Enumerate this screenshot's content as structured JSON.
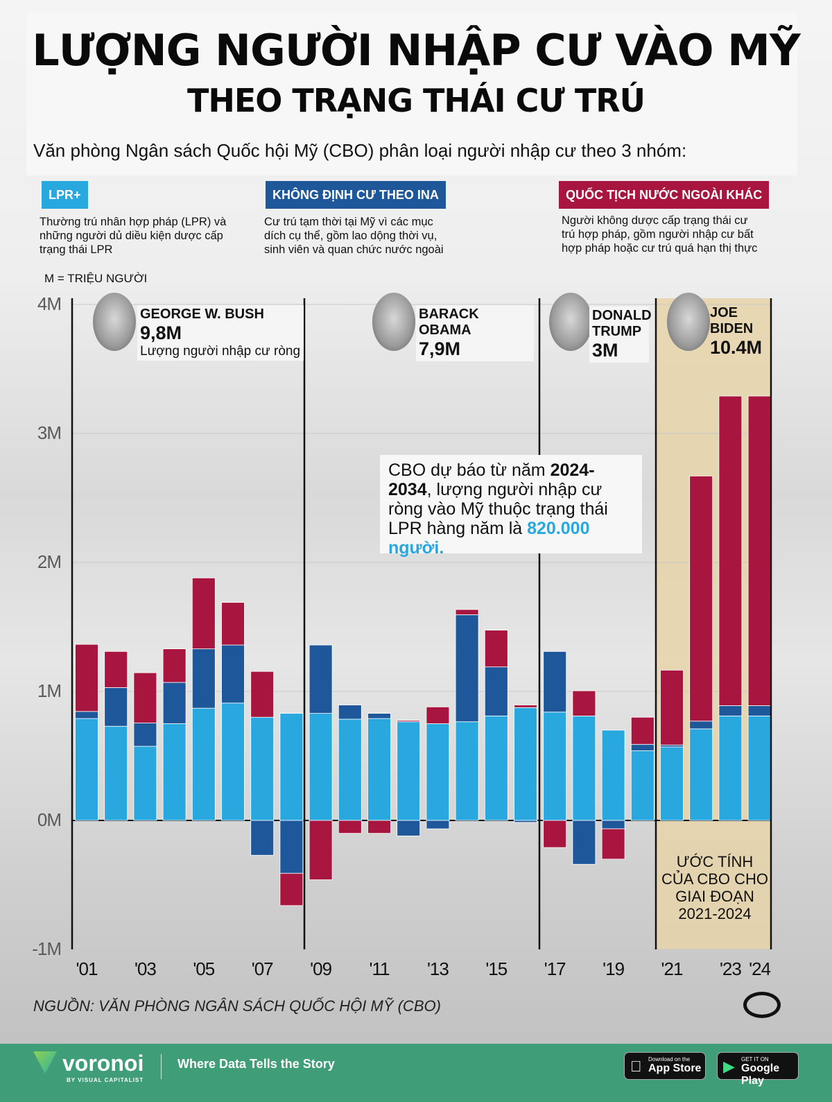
{
  "header": {
    "title": "LƯỢNG NGƯỜI NHẬP CƯ VÀO MỸ",
    "subtitle": "THEO TRẠNG THÁI CƯ TRÚ",
    "intro": "Văn phòng Ngân sách Quốc hội Mỹ (CBO) phân loại người nhập cư theo 3 nhóm:"
  },
  "legend": [
    {
      "label": "LPR+",
      "color": "#29a8e0",
      "desc": "Thường trú nhân hợp pháp (LPR) và những người dủ diều kiện dược cấp trạng thái LPR"
    },
    {
      "label": "KHÔNG ĐỊNH CƯ THEO INA",
      "color": "#1f579b",
      "desc": "Cư trú tạm thời tại Mỹ vì các mục dích cụ thể, gồm lao dộng thời vụ, sinh viên và quan chức nước ngoài"
    },
    {
      "label": "QUỐC TỊCH NƯỚC NGOÀI KHÁC",
      "color": "#a8153e",
      "desc": "Người không dược cấp trạng thái cư trú hợp pháp, gồm người nhập cư bất hợp pháp hoặc cư trú quá hạn thị thực"
    }
  ],
  "unit_note": "M = TRIỆU NGƯỜI",
  "presidents": [
    {
      "name": "GEORGE W. BUSH",
      "value": "9,8M",
      "note": "Lượng người nhập cư ròng"
    },
    {
      "name": "BARACK OBAMA",
      "value": "7,9M"
    },
    {
      "name": "DONALD TRUMP",
      "value": "3M"
    },
    {
      "name": "JOE BIDEN",
      "value": "10.4M"
    }
  ],
  "callout": {
    "pre": "CBO dự báo từ năm ",
    "bold": "2024-2034",
    "mid": ", lượng người nhập cư ròng vào Mỹ thuộc trạng thái LPR hàng năm là ",
    "highlight": "820.000 người."
  },
  "cbo_note": "ƯỚC TÍNH CỦA CBO CHO GIAI ĐOẠN 2021-2024",
  "source": "NGUỒN: VĂN PHÒNG NGÂN SÁCH QUỐC HỘI MỸ (CBO)",
  "footer": {
    "brand": "voronoi",
    "brand_sub": "BY VISUAL CAPITALIST",
    "tagline": "Where Data Tells the Story",
    "appstore_small": "Download on the",
    "appstore": "App Store",
    "gplay_small": "GET IT ON",
    "gplay": "Google Play"
  },
  "chart_data": {
    "type": "bar",
    "stacked": true,
    "title": "LƯỢNG NGƯỜI NHẬP CƯ VÀO MỸ THEO TRẠNG THÁI CƯ TRÚ",
    "ylabel": "M = TRIỆU NGƯỜI",
    "ylim": [
      -1,
      4
    ],
    "yticks": [
      "-1M",
      "0M",
      "1M",
      "2M",
      "3M",
      "4M"
    ],
    "ytick_values": [
      -1,
      0,
      1,
      2,
      3,
      4
    ],
    "xtick_labels": [
      {
        "label": "'01",
        "year": 2001
      },
      {
        "label": "'03",
        "year": 2003
      },
      {
        "label": "'05",
        "year": 2005
      },
      {
        "label": "'07",
        "year": 2007
      },
      {
        "label": "'09",
        "year": 2009
      },
      {
        "label": "'11",
        "year": 2011
      },
      {
        "label": "'13",
        "year": 2013
      },
      {
        "label": "'15",
        "year": 2015
      },
      {
        "label": "'17",
        "year": 2017
      },
      {
        "label": "'19",
        "year": 2019
      },
      {
        "label": "'21",
        "year": 2021
      },
      {
        "label": "'23",
        "year": 2023
      },
      {
        "label": "'24",
        "year": 2024
      }
    ],
    "categories": [
      2001,
      2002,
      2003,
      2004,
      2005,
      2006,
      2007,
      2008,
      2009,
      2010,
      2011,
      2012,
      2013,
      2014,
      2015,
      2016,
      2017,
      2018,
      2019,
      2020,
      2021,
      2022,
      2023,
      2024
    ],
    "series": [
      {
        "name": "LPR+",
        "color": "#29a8e0",
        "values": [
          0.79,
          0.73,
          0.575,
          0.75,
          0.87,
          0.91,
          0.8,
          0.83,
          0.83,
          0.785,
          0.79,
          0.765,
          0.75,
          0.765,
          0.81,
          0.875,
          0.84,
          0.81,
          0.7,
          0.54,
          0.57,
          0.71,
          0.81,
          0.81
        ]
      },
      {
        "name": "KHÔNG ĐỊNH CƯ THEO INA",
        "color": "#1f579b",
        "values": [
          0.055,
          0.3,
          0.18,
          0.32,
          0.46,
          0.45,
          -0.27,
          -0.41,
          0.53,
          0.11,
          0.04,
          -0.12,
          -0.065,
          0.83,
          0.38,
          -0.015,
          0.47,
          -0.34,
          -0.065,
          0.05,
          0.015,
          0.06,
          0.08,
          0.08
        ]
      },
      {
        "name": "QUỐC TỊCH NƯỚC NGOÀI KHÁC",
        "color": "#a8153e",
        "values": [
          0.52,
          0.28,
          0.39,
          0.26,
          0.55,
          0.33,
          0.355,
          -0.25,
          -0.46,
          -0.1,
          -0.1,
          0.01,
          0.13,
          0.04,
          0.285,
          0.02,
          -0.21,
          0.195,
          -0.235,
          0.21,
          0.58,
          1.9,
          2.4,
          2.4
        ]
      }
    ],
    "administrations": [
      {
        "name": "GEORGE W. BUSH",
        "from": 2001,
        "to": 2008
      },
      {
        "name": "BARACK OBAMA",
        "from": 2009,
        "to": 2016
      },
      {
        "name": "DONALD TRUMP",
        "from": 2017,
        "to": 2020
      },
      {
        "name": "JOE BIDEN",
        "from": 2021,
        "to": 2024,
        "shaded": true,
        "shade_color": "#e6d3a8"
      }
    ],
    "annotation": "ƯỚC TÍNH CỦA CBO CHO GIAI ĐOẠN 2021-2024",
    "grid": true
  }
}
